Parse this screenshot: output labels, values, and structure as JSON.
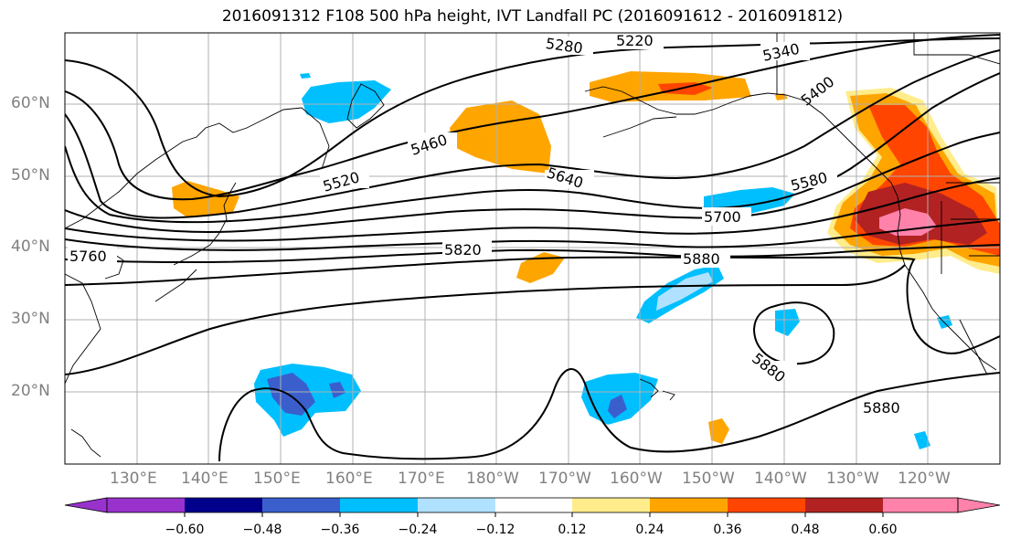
{
  "title": "2016091312 F108 500 hPa height, IVT Landfall PC (2016091612 - 2016091812)",
  "lat_labels": [
    "60°N",
    "50°N",
    "40°N",
    "30°N",
    "20°N"
  ],
  "lon_labels": [
    "130°E",
    "140°E",
    "150°E",
    "160°E",
    "170°E",
    "180°W",
    "170°W",
    "160°W",
    "150°W",
    "140°W",
    "130°W",
    "120°W"
  ],
  "contour_labels": [
    "5280",
    "5220",
    "5340",
    "5400",
    "5460",
    "5520",
    "5580",
    "5640",
    "5700",
    "5760",
    "5820",
    "5880",
    "5880",
    "5880"
  ],
  "colorbar": {
    "colors": [
      "#9932cc",
      "#00008b",
      "#3a5fcd",
      "#00bfff",
      "#b0e2ff",
      "#ffffff",
      "#ffec8b",
      "#ffa500",
      "#ff4500",
      "#b22222",
      "#ff82ab"
    ],
    "ticks": [
      "−0.60",
      "−0.48",
      "−0.36",
      "−0.24",
      "−0.12",
      "0.12",
      "0.24",
      "0.36",
      "0.48",
      "0.60"
    ]
  }
}
